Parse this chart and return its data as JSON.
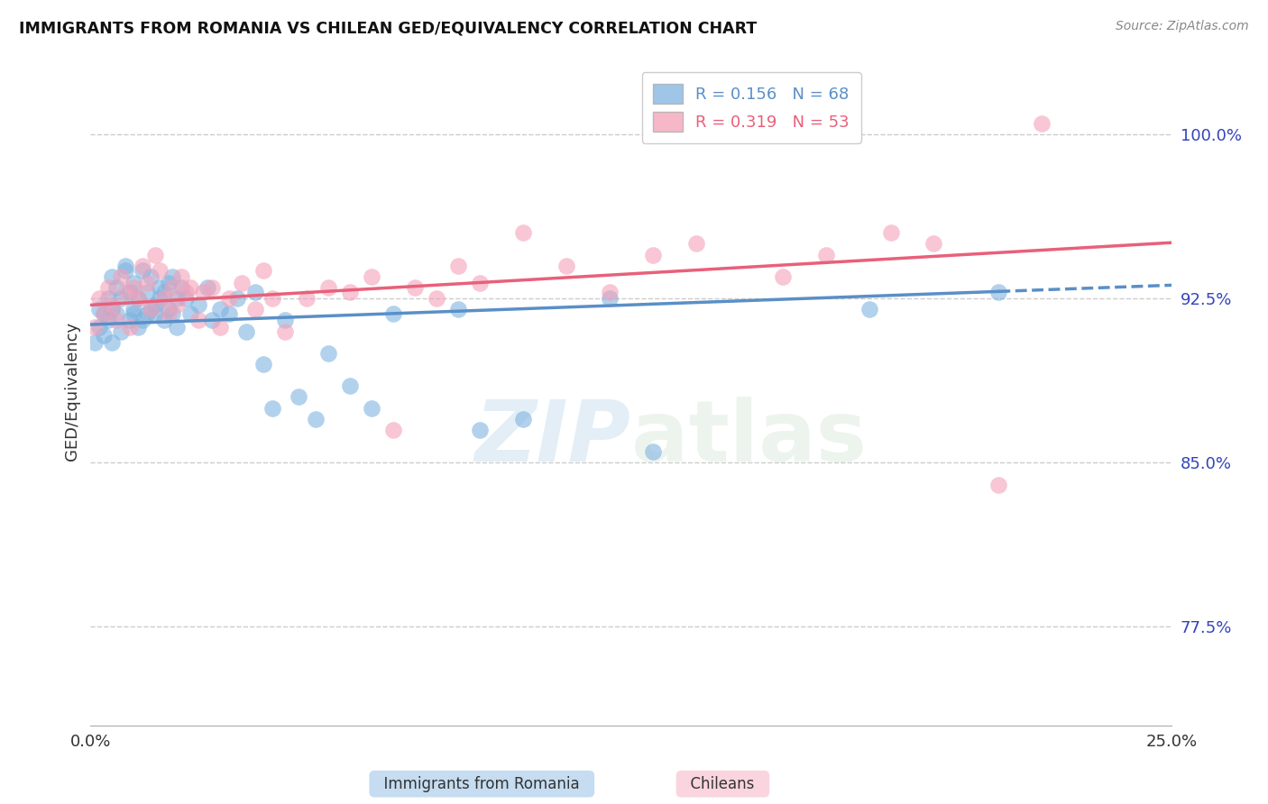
{
  "title": "IMMIGRANTS FROM ROMANIA VS CHILEAN GED/EQUIVALENCY CORRELATION CHART",
  "source": "Source: ZipAtlas.com",
  "ylabel": "GED/Equivalency",
  "yticks": [
    77.5,
    85.0,
    92.5,
    100.0
  ],
  "xmin": 0.0,
  "xmax": 0.25,
  "ymin": 73.0,
  "ymax": 103.5,
  "color_romania": "#7fb3e0",
  "color_chilean": "#f4a0b8",
  "line_romania": "#5a8fc7",
  "line_chilean": "#e8607a",
  "ro_R": 0.156,
  "ro_N": 68,
  "ch_R": 0.319,
  "ch_N": 53,
  "romania_scatter_x": [
    0.001,
    0.002,
    0.002,
    0.003,
    0.003,
    0.004,
    0.004,
    0.005,
    0.005,
    0.005,
    0.006,
    0.006,
    0.007,
    0.007,
    0.008,
    0.008,
    0.009,
    0.009,
    0.01,
    0.01,
    0.01,
    0.011,
    0.011,
    0.012,
    0.012,
    0.013,
    0.013,
    0.014,
    0.014,
    0.015,
    0.015,
    0.016,
    0.016,
    0.017,
    0.017,
    0.018,
    0.018,
    0.019,
    0.019,
    0.02,
    0.02,
    0.021,
    0.022,
    0.023,
    0.025,
    0.027,
    0.028,
    0.03,
    0.032,
    0.034,
    0.036,
    0.038,
    0.04,
    0.042,
    0.045,
    0.048,
    0.052,
    0.055,
    0.06,
    0.065,
    0.07,
    0.085,
    0.09,
    0.1,
    0.12,
    0.13,
    0.18,
    0.21
  ],
  "romania_scatter_y": [
    90.5,
    92.0,
    91.2,
    91.8,
    90.8,
    92.5,
    91.5,
    93.5,
    92.0,
    90.5,
    91.8,
    93.0,
    92.5,
    91.0,
    94.0,
    93.8,
    92.8,
    91.5,
    92.0,
    91.8,
    93.2,
    92.5,
    91.2,
    93.8,
    91.5,
    92.8,
    91.8,
    92.0,
    93.5,
    92.2,
    91.8,
    92.5,
    93.0,
    92.8,
    91.5,
    93.2,
    92.0,
    91.8,
    93.5,
    92.5,
    91.2,
    93.0,
    92.5,
    91.8,
    92.2,
    93.0,
    91.5,
    92.0,
    91.8,
    92.5,
    91.0,
    92.8,
    89.5,
    87.5,
    91.5,
    88.0,
    87.0,
    90.0,
    88.5,
    87.5,
    91.8,
    92.0,
    86.5,
    87.0,
    92.5,
    85.5,
    92.0,
    92.8
  ],
  "chilean_scatter_x": [
    0.001,
    0.002,
    0.003,
    0.004,
    0.005,
    0.006,
    0.007,
    0.008,
    0.009,
    0.01,
    0.011,
    0.012,
    0.013,
    0.014,
    0.015,
    0.016,
    0.017,
    0.018,
    0.019,
    0.02,
    0.021,
    0.022,
    0.023,
    0.025,
    0.026,
    0.028,
    0.03,
    0.032,
    0.035,
    0.038,
    0.04,
    0.042,
    0.045,
    0.05,
    0.055,
    0.06,
    0.065,
    0.07,
    0.075,
    0.08,
    0.085,
    0.09,
    0.1,
    0.11,
    0.12,
    0.13,
    0.14,
    0.16,
    0.17,
    0.185,
    0.195,
    0.21,
    0.22
  ],
  "chilean_scatter_y": [
    91.2,
    92.5,
    91.8,
    93.0,
    92.2,
    91.5,
    93.5,
    92.8,
    91.2,
    93.0,
    92.5,
    94.0,
    93.2,
    92.0,
    94.5,
    93.8,
    92.5,
    91.8,
    93.0,
    92.2,
    93.5,
    92.8,
    93.0,
    91.5,
    92.8,
    93.0,
    91.2,
    92.5,
    93.2,
    92.0,
    93.8,
    92.5,
    91.0,
    92.5,
    93.0,
    92.8,
    93.5,
    86.5,
    93.0,
    92.5,
    94.0,
    93.2,
    95.5,
    94.0,
    92.8,
    94.5,
    95.0,
    93.5,
    94.5,
    95.5,
    95.0,
    84.0,
    100.5
  ],
  "watermark_zip": "ZIP",
  "watermark_atlas": "atlas",
  "dpi": 100
}
